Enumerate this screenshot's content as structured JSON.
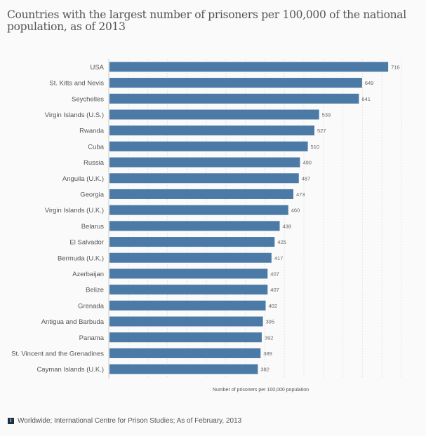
{
  "chart_data": {
    "type": "bar",
    "orientation": "horizontal",
    "title": "Countries with the largest number of prisoners per 100,000 of the national population, as of 2013",
    "xlabel": "Number of prisoners per 100,000 population",
    "xlim": [
      0,
      750
    ],
    "grid": true,
    "bar_color": "#4a7aa5",
    "categories": [
      "USA",
      "St. Kitts and Nevis",
      "Seychelles",
      "Virgin Islands (U.S.)",
      "Rwanda",
      "Cuba",
      "Russia",
      "Anguila (U.K.)",
      "Georgia",
      "Virgin Islands (U.K.)",
      "Belarus",
      "El Salvador",
      "Bermuda (U.K.)",
      "Azerbaijan",
      "Belize",
      "Grenada",
      "Antigua and Barbuda",
      "Panama",
      "St. Vincent and the Grenadines",
      "Cayman Islands (U.K.)"
    ],
    "values": [
      716,
      649,
      641,
      539,
      527,
      510,
      490,
      487,
      473,
      460,
      438,
      425,
      417,
      407,
      407,
      402,
      395,
      392,
      389,
      382
    ]
  },
  "footer": {
    "icon": "info-icon",
    "text": "Worldwide; International Centre for Prison Studies; As of February, 2013"
  }
}
